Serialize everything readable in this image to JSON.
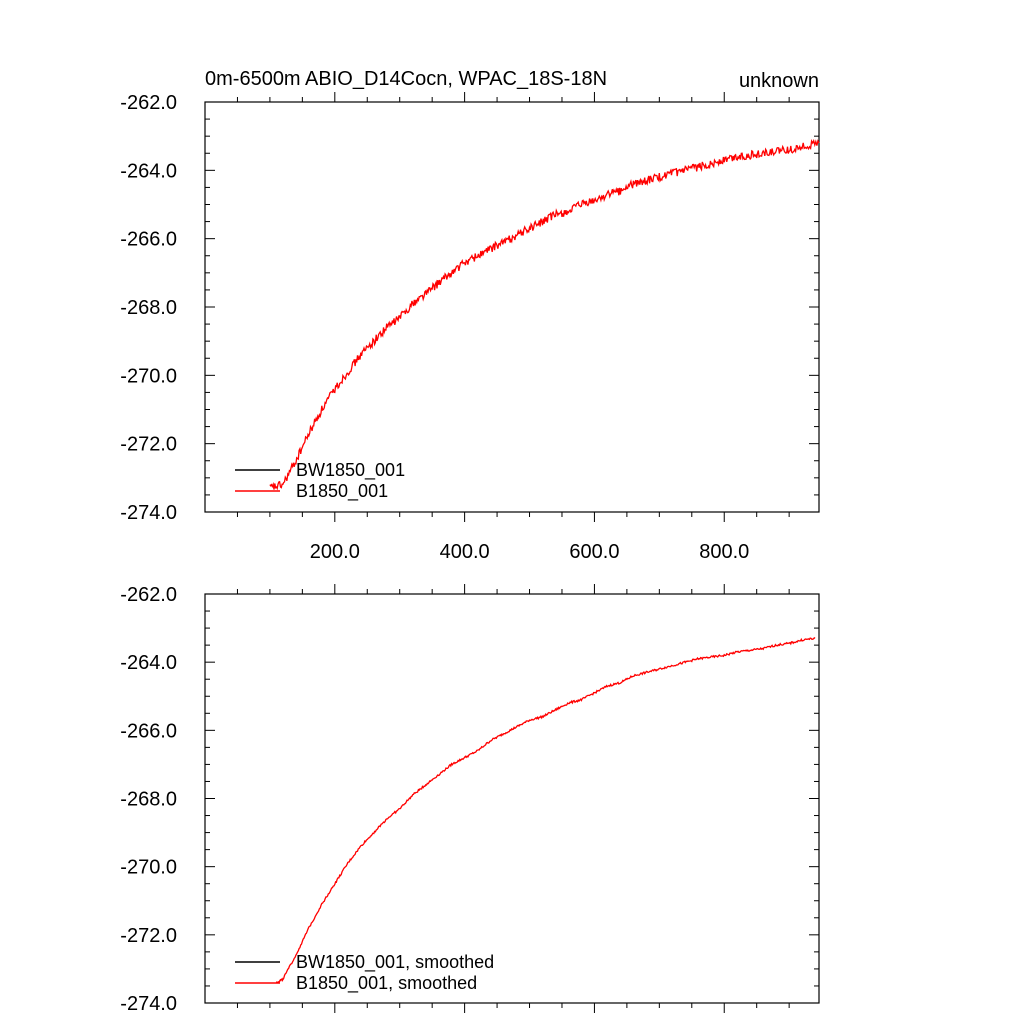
{
  "figure": {
    "title_left": "0m-6500m ABIO_D14Cocn, WPAC_18S-18N",
    "title_right": "unknown"
  },
  "chart_data": [
    {
      "type": "line",
      "title": "0m-6500m ABIO_D14Cocn, WPAC_18S-18N",
      "subtitle_right": "unknown",
      "xlabel": "",
      "ylabel": "",
      "xlim": [
        0,
        946
      ],
      "ylim": [
        -274.0,
        -262.0
      ],
      "x_ticks": [
        200.0,
        400.0,
        600.0,
        800.0
      ],
      "x_tick_labels": [
        "200.0",
        "400.0",
        "600.0",
        "800.0"
      ],
      "y_ticks": [
        -262.0,
        -264.0,
        -266.0,
        -268.0,
        -270.0,
        -272.0,
        -274.0
      ],
      "y_tick_labels": [
        "-262.0",
        "-264.0",
        "-266.0",
        "-268.0",
        "-270.0",
        "-272.0",
        "-274.0"
      ],
      "grid": false,
      "legend_position": "bottom-left",
      "noise": 0.12,
      "series": [
        {
          "name": "BW1850_001",
          "color": "#000000",
          "x": [],
          "y": []
        },
        {
          "name": "B1850_001",
          "color": "#ff0000",
          "x": [
            100,
            120,
            140,
            160,
            180,
            200,
            220,
            240,
            260,
            280,
            300,
            320,
            340,
            360,
            380,
            400,
            420,
            440,
            460,
            480,
            500,
            520,
            540,
            560,
            580,
            600,
            620,
            640,
            660,
            680,
            700,
            720,
            740,
            760,
            780,
            800,
            820,
            840,
            860,
            880,
            900,
            920,
            946
          ],
          "y": [
            -273.3,
            -273.2,
            -272.5,
            -271.7,
            -271.0,
            -270.4,
            -269.9,
            -269.4,
            -269.0,
            -268.6,
            -268.3,
            -267.9,
            -267.6,
            -267.3,
            -267.0,
            -266.7,
            -266.5,
            -266.3,
            -266.1,
            -265.9,
            -265.7,
            -265.5,
            -265.3,
            -265.2,
            -265.0,
            -264.9,
            -264.7,
            -264.6,
            -264.4,
            -264.3,
            -264.2,
            -264.1,
            -264.0,
            -263.9,
            -263.8,
            -263.7,
            -263.6,
            -263.55,
            -263.5,
            -263.45,
            -263.4,
            -263.3,
            -263.2
          ]
        }
      ]
    },
    {
      "type": "line",
      "title": "",
      "xlabel": "",
      "ylabel": "",
      "xlim": [
        0,
        946
      ],
      "ylim": [
        -274.0,
        -262.0
      ],
      "x_ticks": [
        200.0,
        400.0,
        600.0,
        800.0
      ],
      "x_tick_labels": [],
      "y_ticks": [
        -262.0,
        -264.0,
        -266.0,
        -268.0,
        -270.0,
        -272.0,
        -274.0
      ],
      "y_tick_labels": [
        "-262.0",
        "-264.0",
        "-266.0",
        "-268.0",
        "-270.0",
        "-272.0",
        "-274.0"
      ],
      "grid": false,
      "legend_position": "bottom-left",
      "noise": 0.03,
      "series": [
        {
          "name": "BW1850_001, smoothed",
          "color": "#000000",
          "x": [],
          "y": []
        },
        {
          "name": "B1850_001, smoothed",
          "color": "#ff0000",
          "x": [
            110,
            120,
            140,
            160,
            180,
            200,
            220,
            240,
            260,
            280,
            300,
            320,
            340,
            360,
            380,
            400,
            420,
            440,
            460,
            480,
            500,
            520,
            540,
            560,
            580,
            600,
            620,
            640,
            660,
            680,
            700,
            720,
            740,
            760,
            780,
            800,
            820,
            840,
            860,
            880,
            900,
            920,
            940
          ],
          "y": [
            -273.4,
            -273.3,
            -272.6,
            -271.8,
            -271.1,
            -270.5,
            -269.9,
            -269.4,
            -269.0,
            -268.6,
            -268.3,
            -267.9,
            -267.6,
            -267.3,
            -267.0,
            -266.8,
            -266.6,
            -266.3,
            -266.1,
            -265.9,
            -265.7,
            -265.6,
            -265.4,
            -265.2,
            -265.1,
            -264.9,
            -264.7,
            -264.6,
            -264.4,
            -264.3,
            -264.2,
            -264.1,
            -264.0,
            -263.9,
            -263.85,
            -263.8,
            -263.7,
            -263.65,
            -263.6,
            -263.5,
            -263.45,
            -263.35,
            -263.3
          ]
        }
      ]
    }
  ]
}
